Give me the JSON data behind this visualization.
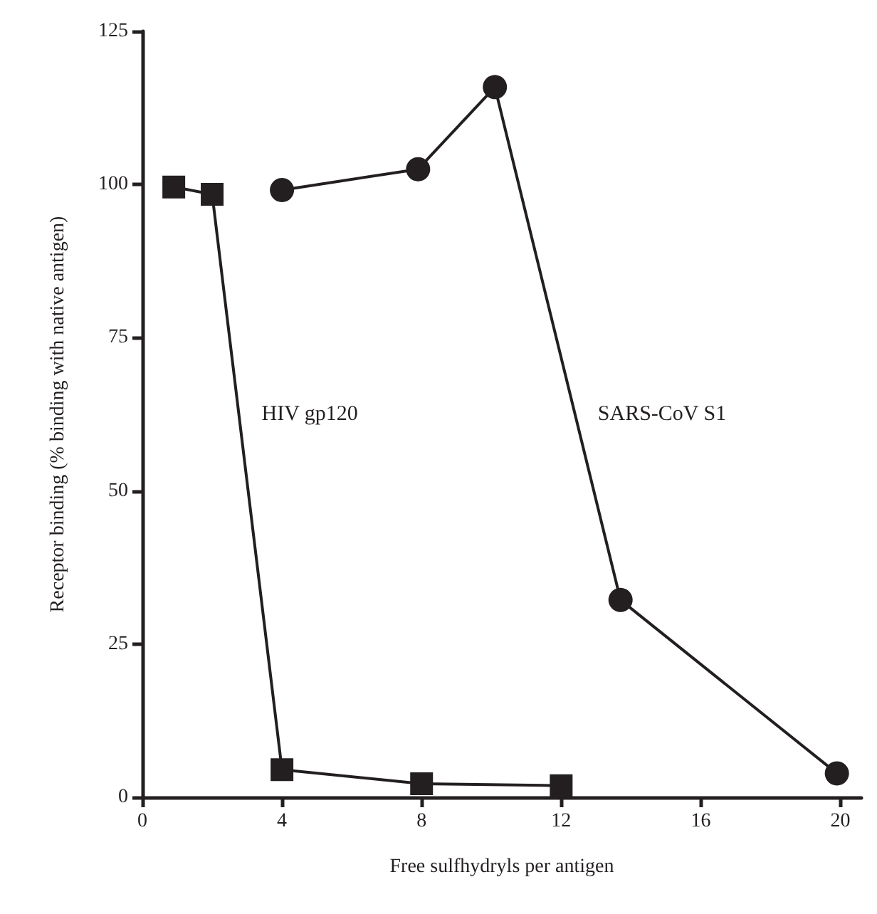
{
  "chart_data": {
    "type": "line",
    "xlabel": "Free sulfhydryls per antigen",
    "ylabel": "Receptor binding (% binding with native antigen)",
    "xlim": [
      0,
      20.6
    ],
    "xticks": [
      0,
      4,
      8,
      12,
      16,
      20
    ],
    "ylim": [
      0,
      125
    ],
    "yticks": [
      0,
      25,
      50,
      75,
      100,
      125
    ],
    "grid": false,
    "line_style": "solid",
    "series": [
      {
        "name": "HIV gp120",
        "color": "#231f20",
        "marker": "square",
        "x": [
          0.9,
          2,
          4,
          8,
          12
        ],
        "values": [
          99.6,
          98.4,
          4.5,
          2.2,
          1.9
        ]
      },
      {
        "name": "SARS-CoV S1",
        "color": "#231f20",
        "marker": "circle",
        "x": [
          4,
          7.9,
          10.1,
          13.7,
          19.9
        ],
        "values": [
          99.1,
          102.5,
          115.9,
          32.2,
          3.9
        ]
      }
    ]
  }
}
